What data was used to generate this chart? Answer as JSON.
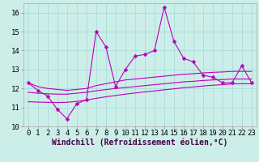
{
  "title": "",
  "xlabel": "Windchill (Refroidissement éolien,°C)",
  "bg_color": "#cceee8",
  "grid_color": "#aaddda",
  "line_color": "#bb00bb",
  "x": [
    0,
    1,
    2,
    3,
    4,
    5,
    6,
    7,
    8,
    9,
    10,
    11,
    12,
    13,
    14,
    15,
    16,
    17,
    18,
    19,
    20,
    21,
    22,
    23
  ],
  "y_main": [
    12.3,
    11.9,
    11.6,
    10.9,
    10.4,
    11.2,
    11.4,
    15.0,
    14.2,
    12.1,
    13.0,
    13.7,
    13.8,
    14.0,
    16.3,
    14.5,
    13.6,
    13.4,
    12.7,
    12.6,
    12.3,
    12.3,
    13.2,
    12.3
  ],
  "y_line1": [
    12.3,
    12.1,
    12.0,
    11.95,
    11.9,
    11.95,
    12.0,
    12.15,
    12.25,
    12.35,
    12.45,
    12.5,
    12.55,
    12.6,
    12.65,
    12.7,
    12.75,
    12.78,
    12.82,
    12.85,
    12.87,
    12.9,
    12.9,
    12.9
  ],
  "y_line2": [
    11.8,
    11.75,
    11.72,
    11.7,
    11.7,
    11.75,
    11.8,
    11.88,
    11.94,
    12.0,
    12.05,
    12.1,
    12.15,
    12.2,
    12.25,
    12.3,
    12.35,
    12.38,
    12.42,
    12.45,
    12.47,
    12.5,
    12.5,
    12.5
  ],
  "y_line3": [
    11.3,
    11.28,
    11.27,
    11.26,
    11.27,
    11.32,
    11.38,
    11.48,
    11.56,
    11.63,
    11.7,
    11.76,
    11.82,
    11.87,
    11.93,
    11.98,
    12.04,
    12.08,
    12.13,
    12.17,
    12.2,
    12.24,
    12.25,
    12.25
  ],
  "ylim": [
    10.0,
    16.5
  ],
  "yticks": [
    10,
    11,
    12,
    13,
    14,
    15,
    16
  ],
  "xticks": [
    0,
    1,
    2,
    3,
    4,
    5,
    6,
    7,
    8,
    9,
    10,
    11,
    12,
    13,
    14,
    15,
    16,
    17,
    18,
    19,
    20,
    21,
    22,
    23
  ],
  "font_size": 6.5,
  "xlabel_fontsize": 7,
  "marker_size": 2.5,
  "lw": 0.8
}
